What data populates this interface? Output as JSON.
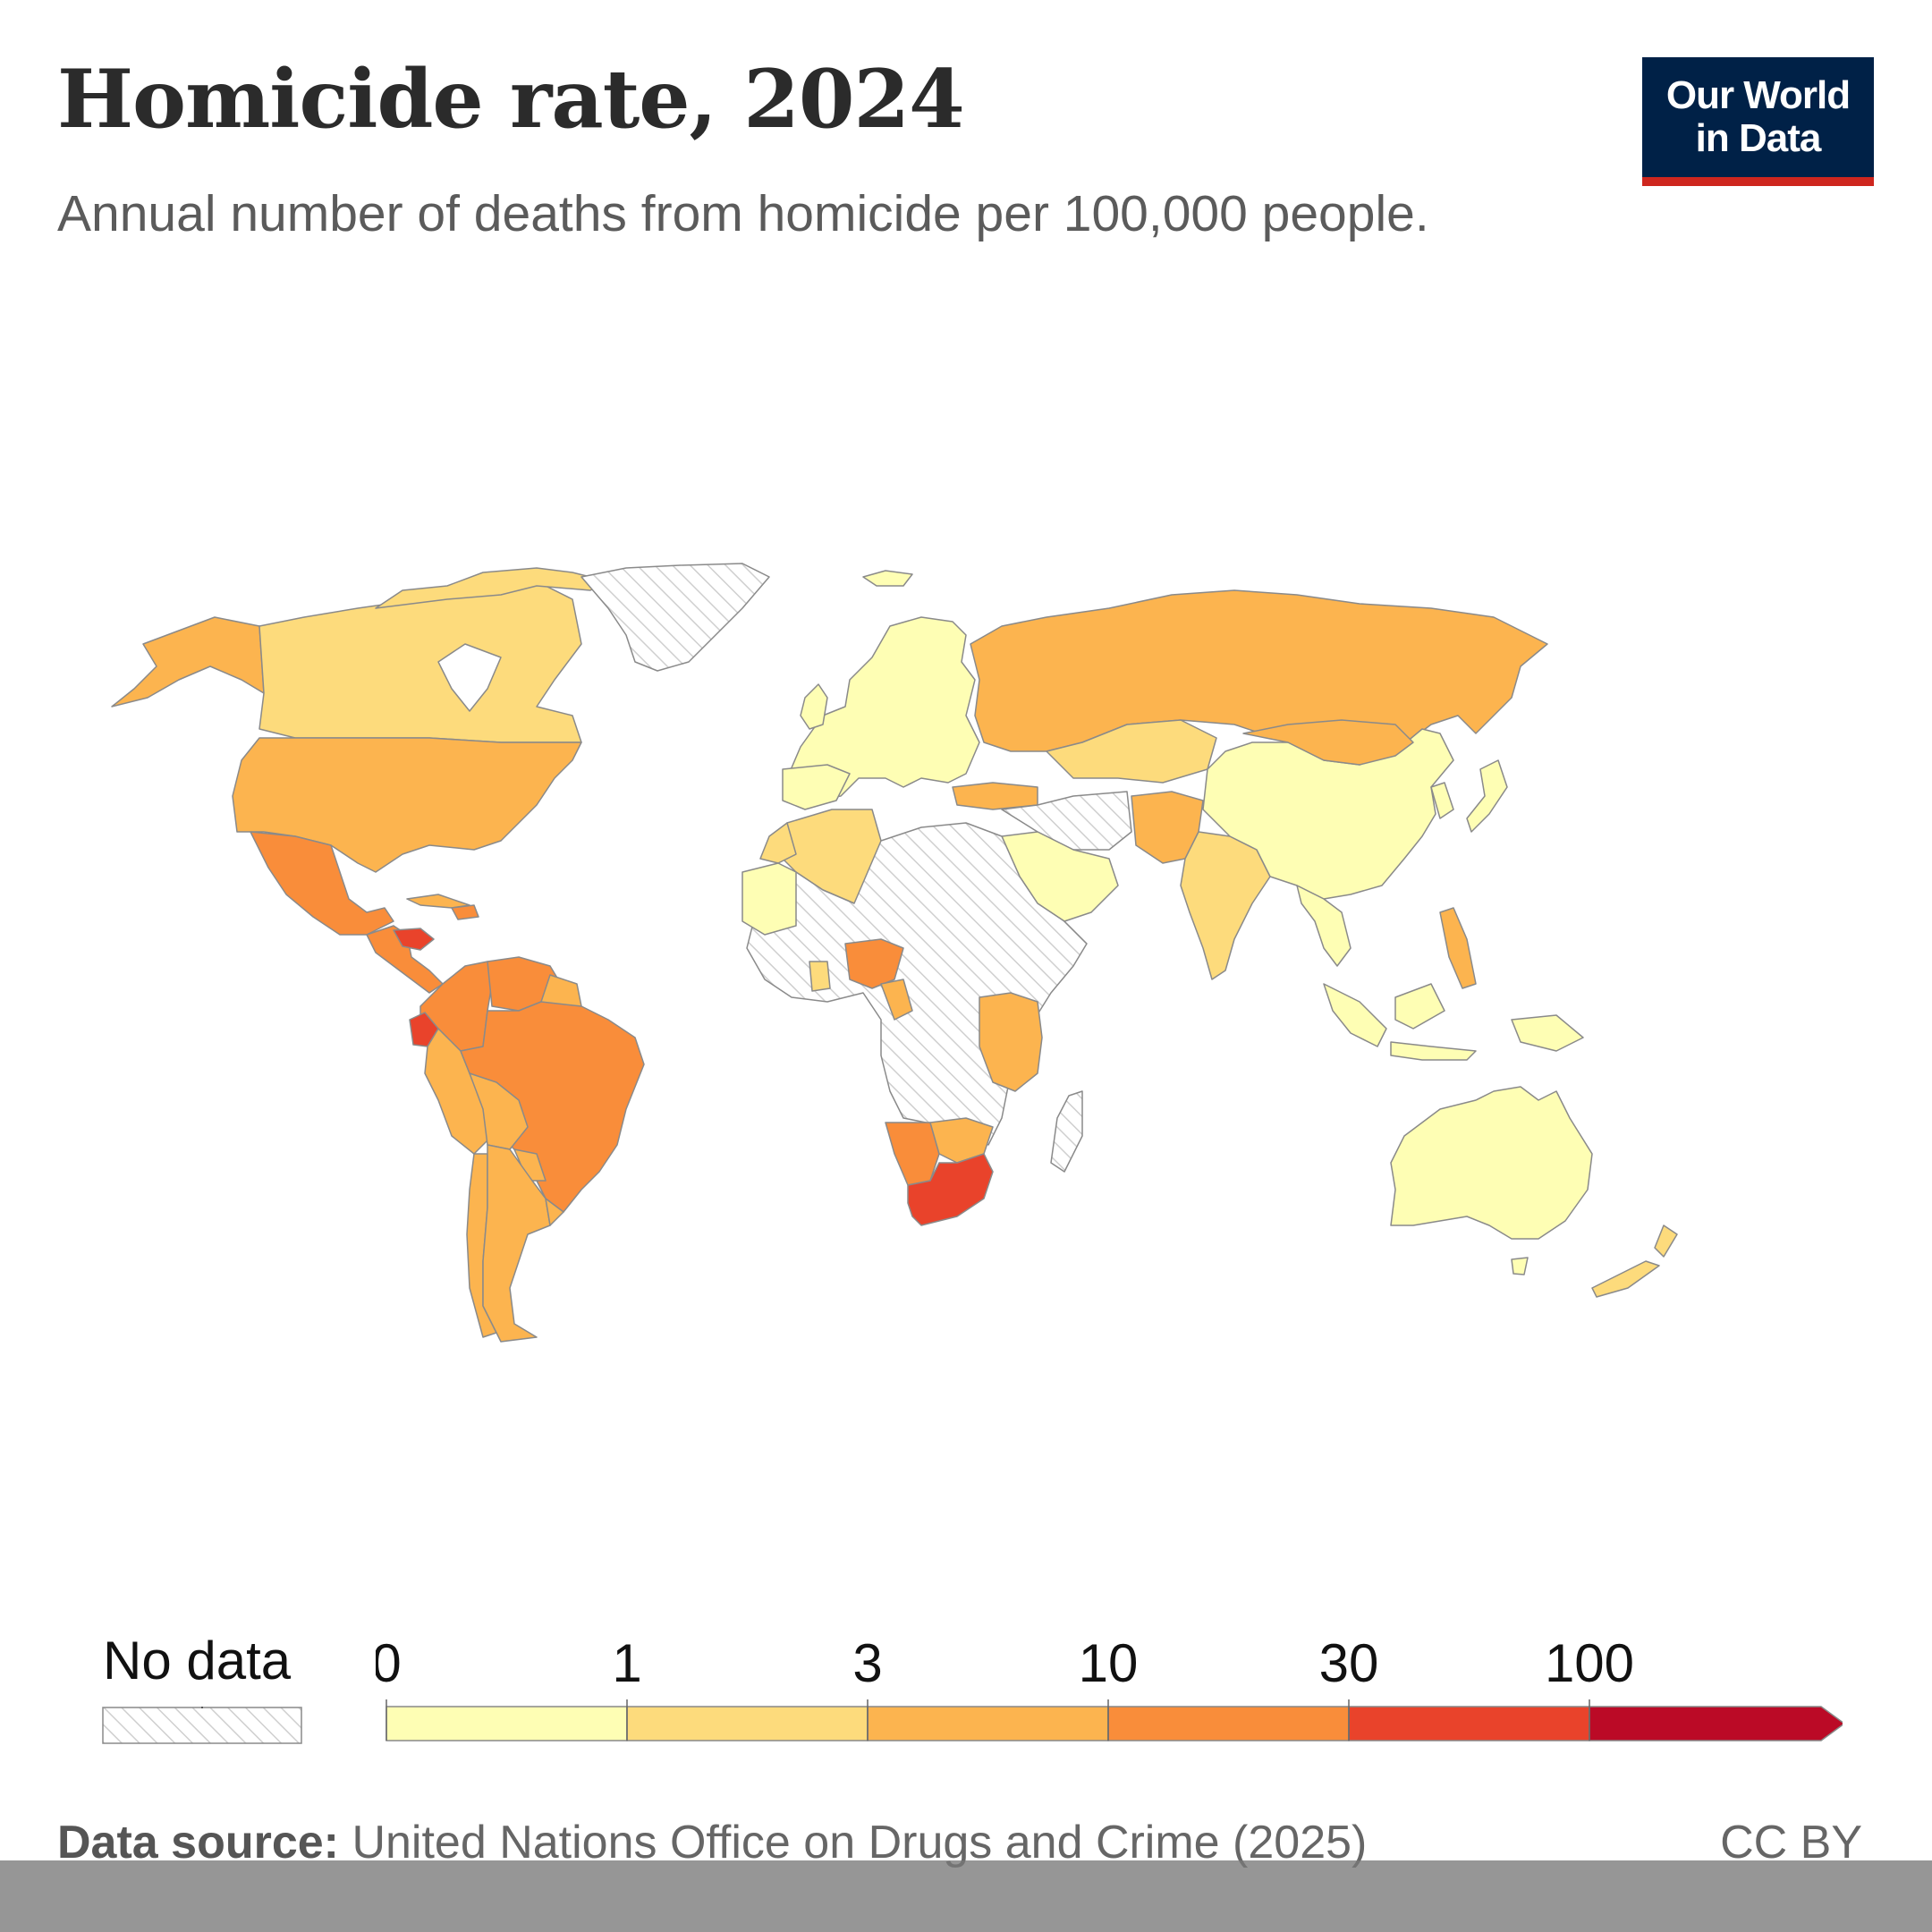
{
  "header": {
    "title": "Homicide rate, 2024",
    "subtitle": "Annual number of deaths from homicide per 100,000 people."
  },
  "logo": {
    "line1": "Our World",
    "line2": "in Data"
  },
  "legend": {
    "no_data_label": "No data",
    "ticks": [
      "0",
      "1",
      "3",
      "10",
      "30",
      "100"
    ],
    "colors": [
      "#fefeb4",
      "#fddb7c",
      "#fcb44f",
      "#f98d3a",
      "#e9432b",
      "#bb0a26"
    ],
    "no_data_pattern": "hatched-grey"
  },
  "footer": {
    "source_label": "Data source:",
    "source_text": " United Nations Office on Drugs and Crime (2025)",
    "license": "CC BY"
  },
  "chart_data": {
    "type": "choropleth",
    "title": "Homicide rate, 2024",
    "subtitle": "Annual number of deaths from homicide per 100,000 people.",
    "scale": "log-binned",
    "bins": [
      0,
      1,
      3,
      10,
      30,
      100
    ],
    "regions": [
      {
        "name": "Canada",
        "bin": "1-3"
      },
      {
        "name": "United States",
        "bin": "3-10"
      },
      {
        "name": "Mexico",
        "bin": "10-30"
      },
      {
        "name": "Honduras",
        "bin": "30-100"
      },
      {
        "name": "Colombia",
        "bin": "10-30"
      },
      {
        "name": "Venezuela",
        "bin": "10-30"
      },
      {
        "name": "Ecuador",
        "bin": "30-100"
      },
      {
        "name": "Brazil",
        "bin": "10-30"
      },
      {
        "name": "Peru",
        "bin": "3-10"
      },
      {
        "name": "Bolivia",
        "bin": "3-10"
      },
      {
        "name": "Argentina",
        "bin": "3-10"
      },
      {
        "name": "Chile",
        "bin": "3-10"
      },
      {
        "name": "Greenland",
        "bin": "no data"
      },
      {
        "name": "Europe",
        "bin": "0-1"
      },
      {
        "name": "Russia",
        "bin": "3-10"
      },
      {
        "name": "Kazakhstan",
        "bin": "1-3"
      },
      {
        "name": "China",
        "bin": "0-1"
      },
      {
        "name": "Japan",
        "bin": "0-1"
      },
      {
        "name": "India",
        "bin": "1-3"
      },
      {
        "name": "Saudi Arabia",
        "bin": "0-1"
      },
      {
        "name": "Algeria",
        "bin": "1-3"
      },
      {
        "name": "Nigeria",
        "bin": "10-30"
      },
      {
        "name": "Central Africa",
        "bin": "no data"
      },
      {
        "name": "East Africa",
        "bin": "3-10"
      },
      {
        "name": "South Africa",
        "bin": "30-100"
      },
      {
        "name": "Namibia",
        "bin": "10-30"
      },
      {
        "name": "Australia",
        "bin": "0-1"
      },
      {
        "name": "New Zealand",
        "bin": "1-3"
      }
    ]
  }
}
